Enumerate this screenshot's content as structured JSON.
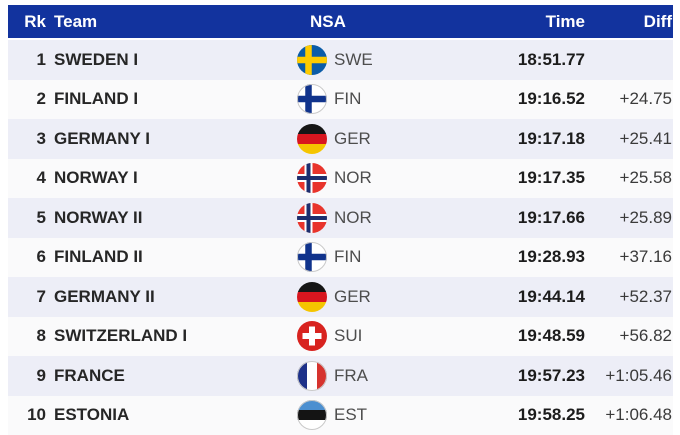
{
  "table": {
    "headers": {
      "rk": "Rk",
      "team": "Team",
      "nsa": "NSA",
      "time": "Time",
      "diff": "Diff"
    },
    "rows": [
      {
        "rank": "1",
        "team": "SWEDEN I",
        "nsa": "SWE",
        "time": "18:51.77",
        "diff": ""
      },
      {
        "rank": "2",
        "team": "FINLAND I",
        "nsa": "FIN",
        "time": "19:16.52",
        "diff": "+24.75"
      },
      {
        "rank": "3",
        "team": "GERMANY I",
        "nsa": "GER",
        "time": "19:17.18",
        "diff": "+25.41"
      },
      {
        "rank": "4",
        "team": "NORWAY I",
        "nsa": "NOR",
        "time": "19:17.35",
        "diff": "+25.58"
      },
      {
        "rank": "5",
        "team": "NORWAY II",
        "nsa": "NOR",
        "time": "19:17.66",
        "diff": "+25.89"
      },
      {
        "rank": "6",
        "team": "FINLAND II",
        "nsa": "FIN",
        "time": "19:28.93",
        "diff": "+37.16"
      },
      {
        "rank": "7",
        "team": "GERMANY II",
        "nsa": "GER",
        "time": "19:44.14",
        "diff": "+52.37"
      },
      {
        "rank": "8",
        "team": "SWITZERLAND I",
        "nsa": "SUI",
        "time": "19:48.59",
        "diff": "+56.82"
      },
      {
        "rank": "9",
        "team": "FRANCE",
        "nsa": "FRA",
        "time": "19:57.23",
        "diff": "+1:05.46"
      },
      {
        "rank": "10",
        "team": "ESTONIA",
        "nsa": "EST",
        "time": "19:58.25",
        "diff": "+1:06.48"
      }
    ]
  },
  "flags": {
    "SWE": {
      "kind": "nordic",
      "bg": "#0B5CA8",
      "cross": [
        "#FECB00"
      ],
      "border": "none"
    },
    "FIN": {
      "kind": "nordic",
      "bg": "#FFFFFF",
      "cross": [
        "#10338C"
      ],
      "border": "#C9C9C9"
    },
    "GER": {
      "kind": "hstripes",
      "stripes": [
        "#161616",
        "#D8161F",
        "#F5C500"
      ],
      "border": "none"
    },
    "NOR": {
      "kind": "nordic",
      "bg": "#E8342C",
      "cross": [
        "#FFFFFF",
        "#1D2E6E"
      ],
      "border": "none"
    },
    "SUI": {
      "kind": "plus",
      "bg": "#D8231F",
      "cross": "#FFFFFF",
      "border": "none"
    },
    "FRA": {
      "kind": "vstripes",
      "stripes": [
        "#1D3189",
        "#FFFFFF",
        "#D6332E"
      ],
      "border": "#C9C9C9"
    },
    "EST": {
      "kind": "hstripes",
      "stripes": [
        "#4B8FD0",
        "#141414",
        "#FFFFFF"
      ],
      "border": "#C9C9C9"
    }
  },
  "colors": {
    "header_bg": "#12339E",
    "header_text": "#FFFFFF",
    "row_odd_bg": "#EDEEF7",
    "row_even_bg": "#FAFAFB",
    "team_text": "#262626",
    "nsa_text": "#4D4D4D",
    "diff_text": "#3A3A3A"
  }
}
